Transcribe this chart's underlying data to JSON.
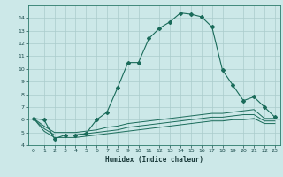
{
  "title": "",
  "xlabel": "Humidex (Indice chaleur)",
  "ylabel": "",
  "bg_color": "#cce8e8",
  "grid_color": "#aacccc",
  "line_color": "#1a6b5a",
  "xlim": [
    -0.5,
    23.5
  ],
  "ylim": [
    4,
    15
  ],
  "xticks": [
    0,
    1,
    2,
    3,
    4,
    5,
    6,
    7,
    8,
    9,
    10,
    11,
    12,
    13,
    14,
    15,
    16,
    17,
    18,
    19,
    20,
    21,
    22,
    23
  ],
  "yticks": [
    4,
    5,
    6,
    7,
    8,
    9,
    10,
    11,
    12,
    13,
    14
  ],
  "main_series": [
    [
      0,
      6.1
    ],
    [
      1,
      6.0
    ],
    [
      2,
      4.5
    ],
    [
      3,
      4.8
    ],
    [
      4,
      4.8
    ],
    [
      5,
      4.9
    ],
    [
      6,
      6.0
    ],
    [
      7,
      6.6
    ],
    [
      8,
      8.5
    ],
    [
      9,
      10.5
    ],
    [
      10,
      10.5
    ],
    [
      11,
      12.4
    ],
    [
      12,
      13.2
    ],
    [
      13,
      13.7
    ],
    [
      14,
      14.4
    ],
    [
      15,
      14.3
    ],
    [
      16,
      14.1
    ],
    [
      17,
      13.3
    ],
    [
      18,
      9.9
    ],
    [
      19,
      8.7
    ],
    [
      20,
      7.5
    ],
    [
      21,
      7.8
    ],
    [
      22,
      7.0
    ],
    [
      23,
      6.2
    ]
  ],
  "flat_series1": [
    [
      0,
      6.1
    ],
    [
      1,
      5.5
    ],
    [
      2,
      5.0
    ],
    [
      3,
      5.0
    ],
    [
      4,
      5.0
    ],
    [
      5,
      5.1
    ],
    [
      6,
      5.2
    ],
    [
      7,
      5.4
    ],
    [
      8,
      5.5
    ],
    [
      9,
      5.7
    ],
    [
      10,
      5.8
    ],
    [
      11,
      5.9
    ],
    [
      12,
      6.0
    ],
    [
      13,
      6.1
    ],
    [
      14,
      6.2
    ],
    [
      15,
      6.3
    ],
    [
      16,
      6.4
    ],
    [
      17,
      6.5
    ],
    [
      18,
      6.5
    ],
    [
      19,
      6.6
    ],
    [
      20,
      6.7
    ],
    [
      21,
      6.8
    ],
    [
      22,
      6.1
    ],
    [
      23,
      6.1
    ]
  ],
  "flat_series2": [
    [
      0,
      6.1
    ],
    [
      1,
      5.3
    ],
    [
      2,
      4.8
    ],
    [
      3,
      4.8
    ],
    [
      4,
      4.8
    ],
    [
      5,
      4.9
    ],
    [
      6,
      5.0
    ],
    [
      7,
      5.1
    ],
    [
      8,
      5.2
    ],
    [
      9,
      5.4
    ],
    [
      10,
      5.5
    ],
    [
      11,
      5.6
    ],
    [
      12,
      5.7
    ],
    [
      13,
      5.8
    ],
    [
      14,
      5.9
    ],
    [
      15,
      6.0
    ],
    [
      16,
      6.1
    ],
    [
      17,
      6.2
    ],
    [
      18,
      6.2
    ],
    [
      19,
      6.3
    ],
    [
      20,
      6.4
    ],
    [
      21,
      6.4
    ],
    [
      22,
      5.9
    ],
    [
      23,
      5.9
    ]
  ],
  "flat_series3": [
    [
      0,
      6.1
    ],
    [
      1,
      5.1
    ],
    [
      2,
      4.6
    ],
    [
      3,
      4.6
    ],
    [
      4,
      4.6
    ],
    [
      5,
      4.7
    ],
    [
      6,
      4.8
    ],
    [
      7,
      4.9
    ],
    [
      8,
      5.0
    ],
    [
      9,
      5.1
    ],
    [
      10,
      5.2
    ],
    [
      11,
      5.3
    ],
    [
      12,
      5.4
    ],
    [
      13,
      5.5
    ],
    [
      14,
      5.6
    ],
    [
      15,
      5.7
    ],
    [
      16,
      5.8
    ],
    [
      17,
      5.9
    ],
    [
      18,
      5.9
    ],
    [
      19,
      6.0
    ],
    [
      20,
      6.0
    ],
    [
      21,
      6.1
    ],
    [
      22,
      5.7
    ],
    [
      23,
      5.7
    ]
  ]
}
